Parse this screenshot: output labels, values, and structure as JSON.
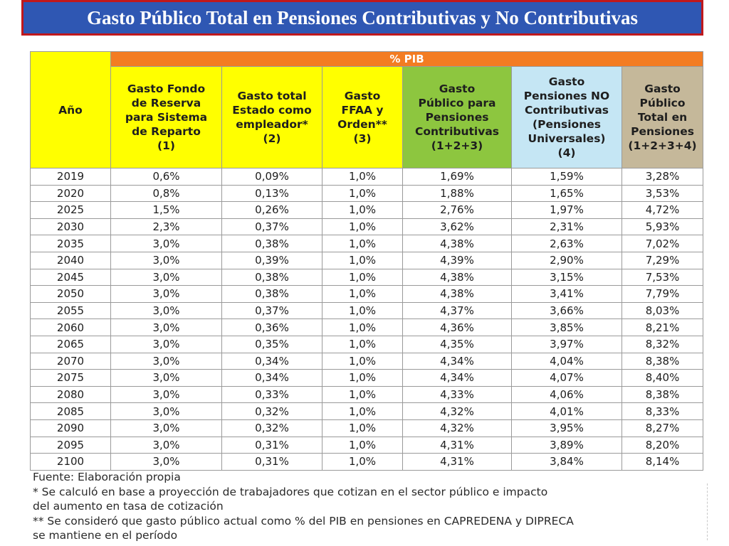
{
  "title": "Gasto Público Total en Pensiones Contributivas y No Contributivas",
  "table": {
    "group_header": "% PIB",
    "year_header": "Año",
    "columns": [
      [
        "Gasto Fondo",
        "de Reserva",
        "para Sistema",
        "de Reparto",
        "(1)"
      ],
      [
        "Gasto total",
        "Estado como",
        "empleador*",
        "(2)"
      ],
      [
        "Gasto",
        "FFAA y",
        "Orden**",
        "(3)"
      ],
      [
        "Gasto",
        "Público para",
        "Pensiones",
        "Contributivas",
        "(1+2+3)"
      ],
      [
        "Gasto",
        "Pensiones NO",
        "Contributivas",
        "(Pensiones",
        "Universales)",
        "(4)"
      ],
      [
        "Gasto",
        "Público",
        "Total en",
        "Pensiones",
        "(1+2+3+4)"
      ]
    ],
    "column_colors": [
      "#ffff00",
      "#ffff00",
      "#ffff00",
      "#8dc63f",
      "#c5e6f4",
      "#c5b89a"
    ],
    "rows": [
      [
        "2019",
        "0,6%",
        "0,09%",
        "1,0%",
        "1,69%",
        "1,59%",
        "3,28%"
      ],
      [
        "2020",
        "0,8%",
        "0,13%",
        "1,0%",
        "1,88%",
        "1,65%",
        "3,53%"
      ],
      [
        "2025",
        "1,5%",
        "0,26%",
        "1,0%",
        "2,76%",
        "1,97%",
        "4,72%"
      ],
      [
        "2030",
        "2,3%",
        "0,37%",
        "1,0%",
        "3,62%",
        "2,31%",
        "5,93%"
      ],
      [
        "2035",
        "3,0%",
        "0,38%",
        "1,0%",
        "4,38%",
        "2,63%",
        "7,02%"
      ],
      [
        "2040",
        "3,0%",
        "0,39%",
        "1,0%",
        "4,39%",
        "2,90%",
        "7,29%"
      ],
      [
        "2045",
        "3,0%",
        "0,38%",
        "1,0%",
        "4,38%",
        "3,15%",
        "7,53%"
      ],
      [
        "2050",
        "3,0%",
        "0,38%",
        "1,0%",
        "4,38%",
        "3,41%",
        "7,79%"
      ],
      [
        "2055",
        "3,0%",
        "0,37%",
        "1,0%",
        "4,37%",
        "3,66%",
        "8,03%"
      ],
      [
        "2060",
        "3,0%",
        "0,36%",
        "1,0%",
        "4,36%",
        "3,85%",
        "8,21%"
      ],
      [
        "2065",
        "3,0%",
        "0,35%",
        "1,0%",
        "4,35%",
        "3,97%",
        "8,32%"
      ],
      [
        "2070",
        "3,0%",
        "0,34%",
        "1,0%",
        "4,34%",
        "4,04%",
        "8,38%"
      ],
      [
        "2075",
        "3,0%",
        "0,34%",
        "1,0%",
        "4,34%",
        "4,07%",
        "8,40%"
      ],
      [
        "2080",
        "3,0%",
        "0,33%",
        "1,0%",
        "4,33%",
        "4,06%",
        "8,38%"
      ],
      [
        "2085",
        "3,0%",
        "0,32%",
        "1,0%",
        "4,32%",
        "4,01%",
        "8,33%"
      ],
      [
        "2090",
        "3,0%",
        "0,32%",
        "1,0%",
        "4,32%",
        "3,95%",
        "8,27%"
      ],
      [
        "2095",
        "3,0%",
        "0,31%",
        "1,0%",
        "4,31%",
        "3,89%",
        "8,20%"
      ],
      [
        "2100",
        "3,0%",
        "0,31%",
        "1,0%",
        "4,31%",
        "3,84%",
        "8,14%"
      ]
    ]
  },
  "notes": [
    "Fuente: Elaboración propia",
    "* Se calculó en base a proyección de trabajadores que cotizan en el sector público e impacto",
    "del aumento en tasa de cotización",
    "** Se consideró que gasto público actual como % del PIB en pensiones en CAPREDENA y DIPRECA",
    "se mantiene en el período"
  ]
}
